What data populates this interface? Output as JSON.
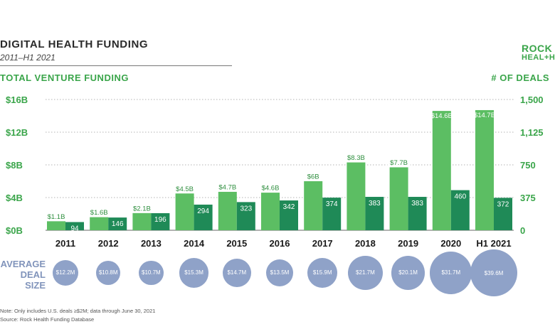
{
  "header": {
    "title": "DIGITAL HEALTH FUNDING",
    "subtitle": "2011–H1 2021",
    "logo_line1": "ROCK",
    "logo_line2": "HEAL+H"
  },
  "colors": {
    "funding_bar": "#5cbe63",
    "deals_bar": "#1f8a57",
    "bubble": "#8fa2c8",
    "accent_green": "#3aa54a",
    "bubble_label": "#8194bb"
  },
  "chart_data": {
    "type": "bar",
    "title": "DIGITAL HEALTH FUNDING",
    "subtitle": "2011–H1 2021",
    "categories": [
      "2011",
      "2012",
      "2013",
      "2014",
      "2015",
      "2016",
      "2017",
      "2018",
      "2019",
      "2020",
      "H1 2021"
    ],
    "series": [
      {
        "name": "TOTAL VENTURE FUNDING",
        "axis": "left",
        "values": [
          1.1,
          1.6,
          2.1,
          4.5,
          4.7,
          4.6,
          6.0,
          8.3,
          7.7,
          14.6,
          14.7
        ],
        "labels": [
          "$1.1B",
          "$1.6B",
          "$2.1B",
          "$4.5B",
          "$4.7B",
          "$4.6B",
          "$6B",
          "$8.3B",
          "$7.7B",
          "$14.6B",
          "$14.7B"
        ]
      },
      {
        "name": "# OF DEALS",
        "axis": "right",
        "values": [
          94,
          146,
          196,
          294,
          323,
          342,
          374,
          383,
          383,
          460,
          372
        ],
        "labels": [
          "94",
          "146",
          "196",
          "294",
          "323",
          "342",
          "374",
          "383",
          "383",
          "460",
          "372"
        ]
      }
    ],
    "left_axis": {
      "title": "TOTAL VENTURE FUNDING",
      "ylim": [
        0,
        16
      ],
      "ticks": [
        0,
        4,
        8,
        12,
        16
      ],
      "tick_labels": [
        "$0B",
        "$4B",
        "$8B",
        "$12B",
        "$16B"
      ]
    },
    "right_axis": {
      "title": "# OF DEALS",
      "ylim": [
        0,
        1500
      ],
      "ticks": [
        0,
        375,
        750,
        1125,
        1500
      ],
      "tick_labels": [
        "0",
        "375",
        "750",
        "1,125",
        "1,500"
      ]
    },
    "grid": true,
    "average_deal_size": {
      "label": [
        "AVERAGE",
        "DEAL",
        "SIZE"
      ],
      "values": [
        12.2,
        10.8,
        10.7,
        15.3,
        14.7,
        13.5,
        15.9,
        21.7,
        20.1,
        31.7,
        39.6
      ],
      "labels": [
        "$12.2M",
        "$10.8M",
        "$10.7M",
        "$15.3M",
        "$14.7M",
        "$13.5M",
        "$15.9M",
        "$21.7M",
        "$20.1M",
        "$31.7M",
        "$39.6M"
      ]
    }
  },
  "footer": {
    "note": "Note: Only includes U.S. deals ≥$2M; data through June 30, 2021",
    "source": "Source: Rock Health Funding Database"
  }
}
